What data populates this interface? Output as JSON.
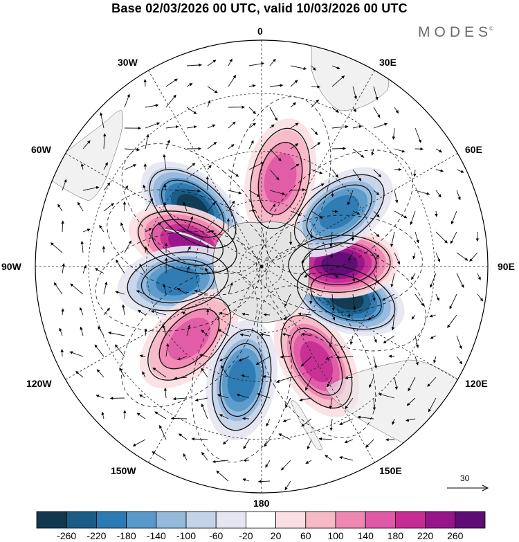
{
  "title": "Base 02/03/2026 00 UTC, valid 10/03/2026 00 UTC",
  "brand": "MODES",
  "brand_mark": "©",
  "longitude_labels": {
    "lon_0": "0",
    "lon_30e": "30E",
    "lon_60e": "60E",
    "lon_90e": "90E",
    "lon_120e": "120E",
    "lon_150e": "150E",
    "lon_180": "180",
    "lon_150w": "150W",
    "lon_120w": "120W",
    "lon_90w": "90W",
    "lon_60w": "60W",
    "lon_30w": "30W"
  },
  "reference_vector": {
    "label": "30"
  },
  "colorbar": {
    "ticks": [
      "-260",
      "-220",
      "-180",
      "-140",
      "-100",
      "-60",
      "-20",
      "20",
      "60",
      "100",
      "140",
      "180",
      "220",
      "260"
    ],
    "colors": [
      "#12384f",
      "#1a5c85",
      "#2c7ab3",
      "#5899c9",
      "#94b9db",
      "#c5d3e8",
      "#e6e6f2",
      "#ffffff",
      "#fadfe3",
      "#f6b9c6",
      "#ee87b2",
      "#e059a6",
      "#c72c93",
      "#96168a",
      "#5e0d77"
    ]
  },
  "map_data": {
    "projection": "south-polar-stereographic",
    "anomalies": [
      {
        "name": "low-60w",
        "lon": -50,
        "lat": -50,
        "value": -260
      },
      {
        "name": "high-70w",
        "lon": -72,
        "lat": -55,
        "value": 240
      },
      {
        "name": "low-95w",
        "lon": -100,
        "lat": -52,
        "value": -200
      },
      {
        "name": "high-130w",
        "lon": -135,
        "lat": -45,
        "value": 140
      },
      {
        "name": "low-170w",
        "lon": -170,
        "lat": -40,
        "value": -180
      },
      {
        "name": "high-150e",
        "lon": 150,
        "lat": -42,
        "value": 180
      },
      {
        "name": "low-110e",
        "lon": 110,
        "lat": -50,
        "value": -260
      },
      {
        "name": "high-90e",
        "lon": 88,
        "lat": -55,
        "value": 260
      },
      {
        "name": "low-55e",
        "lon": 55,
        "lat": -48,
        "value": -180
      },
      {
        "name": "high-15e",
        "lon": 12,
        "lat": -50,
        "value": 140
      }
    ]
  }
}
